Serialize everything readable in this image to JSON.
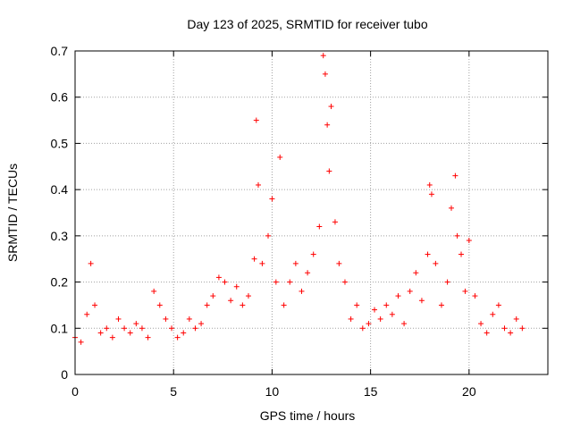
{
  "chart_data": {
    "type": "scatter",
    "title": "Day 123 of 2025, SRMTID for receiver tubo",
    "xlabel": "GPS time / hours",
    "ylabel": "SRMTID / TECUs",
    "xlim": [
      0,
      24
    ],
    "ylim": [
      0,
      0.7
    ],
    "xticks": [
      0,
      5,
      10,
      15,
      20
    ],
    "xtick_labels": [
      "0",
      "5",
      "10",
      "15",
      "20"
    ],
    "yticks": [
      0,
      0.1,
      0.2,
      0.3,
      0.4,
      0.5,
      0.6,
      0.7
    ],
    "ytick_labels": [
      "0",
      "0.1",
      "0.2",
      "0.3",
      "0.4",
      "0.5",
      "0.6",
      "0.7"
    ],
    "grid": true,
    "marker": "+",
    "color": "#ff0000",
    "series": [
      {
        "name": "SRMTID",
        "x": [
          0.0,
          0.3,
          0.6,
          0.8,
          1.0,
          1.3,
          1.6,
          1.9,
          2.2,
          2.5,
          2.8,
          3.1,
          3.4,
          3.7,
          4.0,
          4.3,
          4.6,
          4.9,
          5.2,
          5.5,
          5.8,
          6.1,
          6.4,
          6.7,
          7.0,
          7.3,
          7.6,
          7.9,
          8.2,
          8.5,
          8.8,
          9.1,
          9.2,
          9.3,
          9.5,
          9.8,
          10.0,
          10.2,
          10.4,
          10.6,
          10.9,
          11.2,
          11.5,
          11.8,
          12.1,
          12.4,
          12.6,
          12.7,
          12.8,
          12.9,
          13.0,
          13.2,
          13.4,
          13.7,
          14.0,
          14.3,
          14.6,
          14.9,
          15.2,
          15.5,
          15.8,
          16.1,
          16.4,
          16.7,
          17.0,
          17.3,
          17.6,
          17.9,
          18.0,
          18.1,
          18.3,
          18.6,
          18.9,
          19.1,
          19.3,
          19.4,
          19.6,
          19.8,
          20.0,
          20.3,
          20.6,
          20.9,
          21.2,
          21.5,
          21.8,
          22.1,
          22.4,
          22.7
        ],
        "y": [
          0.08,
          0.07,
          0.13,
          0.24,
          0.15,
          0.09,
          0.1,
          0.08,
          0.12,
          0.1,
          0.09,
          0.11,
          0.1,
          0.08,
          0.18,
          0.15,
          0.12,
          0.1,
          0.08,
          0.09,
          0.12,
          0.1,
          0.11,
          0.15,
          0.17,
          0.21,
          0.2,
          0.16,
          0.19,
          0.15,
          0.17,
          0.25,
          0.55,
          0.41,
          0.24,
          0.3,
          0.38,
          0.2,
          0.47,
          0.15,
          0.2,
          0.24,
          0.18,
          0.22,
          0.26,
          0.32,
          0.69,
          0.65,
          0.54,
          0.44,
          0.58,
          0.33,
          0.24,
          0.2,
          0.12,
          0.15,
          0.1,
          0.11,
          0.14,
          0.12,
          0.15,
          0.13,
          0.17,
          0.11,
          0.18,
          0.22,
          0.16,
          0.26,
          0.41,
          0.39,
          0.24,
          0.15,
          0.2,
          0.36,
          0.43,
          0.3,
          0.26,
          0.18,
          0.29,
          0.17,
          0.11,
          0.09,
          0.13,
          0.15,
          0.1,
          0.09,
          0.12,
          0.1
        ]
      }
    ]
  }
}
